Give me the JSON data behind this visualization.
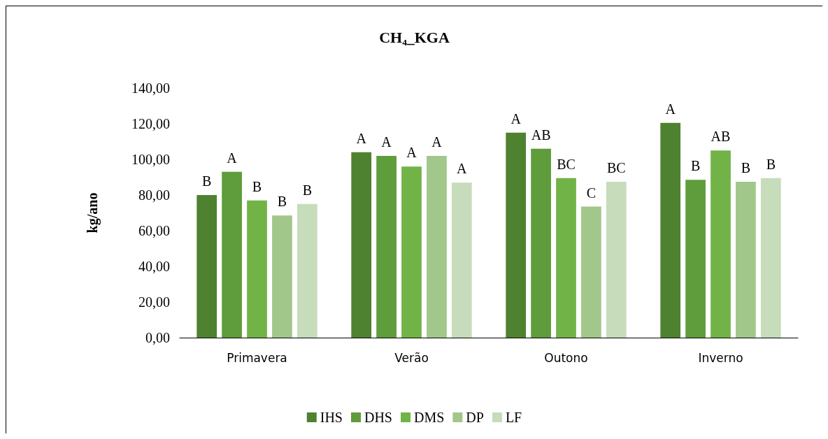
{
  "chart_data": {
    "type": "bar",
    "title": "CH₄_KGA",
    "ylabel": "kg/ano",
    "categories": [
      "Primavera",
      "Verão",
      "Outono",
      "Inverno"
    ],
    "series": [
      {
        "name": "IHS",
        "color": "#4f8230",
        "values": [
          80,
          104,
          115,
          120.5
        ],
        "value_labels": [
          "B",
          "A",
          "A",
          "A"
        ]
      },
      {
        "name": "DHS",
        "color": "#5f9c3c",
        "values": [
          93,
          102,
          106,
          88.5
        ],
        "value_labels": [
          "A",
          "A",
          "AB",
          "B"
        ]
      },
      {
        "name": "DMS",
        "color": "#72b348",
        "values": [
          77,
          96,
          89.5,
          105
        ],
        "value_labels": [
          "B",
          "A",
          "BC",
          "AB"
        ]
      },
      {
        "name": "DP",
        "color": "#a2c78a",
        "values": [
          68.5,
          102,
          73.5,
          87.5
        ],
        "value_labels": [
          "B",
          "A",
          "C",
          "B"
        ]
      },
      {
        "name": "LF",
        "color": "#c6dcbb",
        "values": [
          75,
          87,
          87.5,
          89.5
        ],
        "value_labels": [
          "B",
          "A",
          "BC",
          "B"
        ]
      }
    ],
    "ylim": [
      0,
      140
    ],
    "yticks": [
      {
        "value": 0,
        "label": "0,00"
      },
      {
        "value": 20,
        "label": "20,00"
      },
      {
        "value": 40,
        "label": "40,00"
      },
      {
        "value": 60,
        "label": "60,00"
      },
      {
        "value": 80,
        "label": "80,00"
      },
      {
        "value": 100,
        "label": "100,00"
      },
      {
        "value": 120,
        "label": "120,00"
      },
      {
        "value": 140,
        "label": "140,00"
      }
    ],
    "grid": false,
    "legend": "bottom"
  }
}
